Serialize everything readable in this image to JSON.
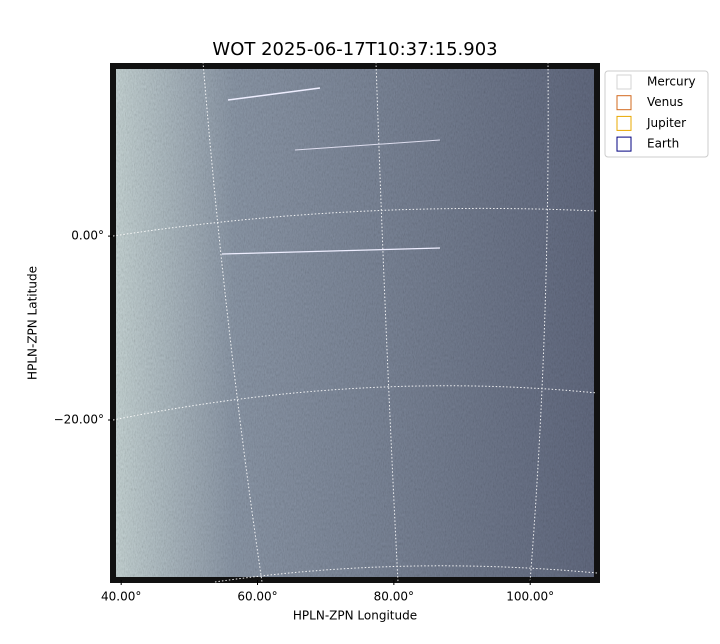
{
  "chart_data": {
    "type": "image",
    "title": "WOT 2025-06-17T10:37:15.903",
    "xlabel": "HPLN-ZPN Longitude",
    "ylabel": "HPLN-ZPN Latitude",
    "xlim": [
      38.8,
      109.8
    ],
    "ylim": [
      -37.4,
      18.5
    ],
    "xticks": [
      {
        "value": 40,
        "label": "40.00°"
      },
      {
        "value": 60,
        "label": "60.00°"
      },
      {
        "value": 80,
        "label": "80.00°"
      },
      {
        "value": 100,
        "label": "100.00°"
      }
    ],
    "yticks": [
      {
        "value": 0,
        "label": "0.00°"
      },
      {
        "value": -20,
        "label": "−20.00°"
      }
    ],
    "legend": "upper right",
    "series": [
      {
        "name": "Mercury",
        "color": "#d3d3d3"
      },
      {
        "name": "Venus",
        "color": "#d2691e"
      },
      {
        "name": "Jupiter",
        "color": "#e8a800"
      },
      {
        "name": "Earth",
        "color": "#000080"
      }
    ]
  }
}
